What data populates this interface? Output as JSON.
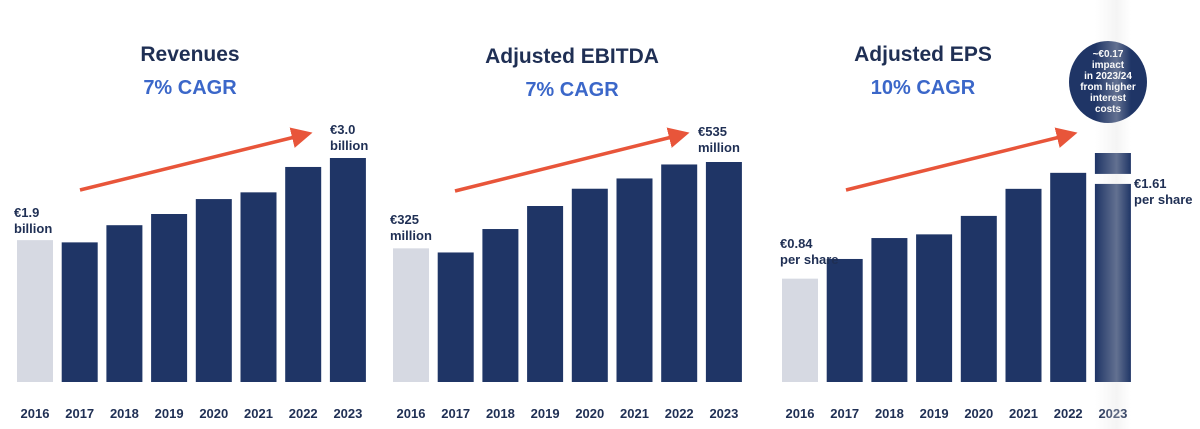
{
  "colors": {
    "bar": "#1f3566",
    "bar_base": "#d6d9e2",
    "arrow": "#e8553a",
    "title": "#1f2f54",
    "cagr": "#3b67c9"
  },
  "chart_data": [
    {
      "type": "bar",
      "title": "Revenues",
      "subtitle": "7% CAGR",
      "categories": [
        "2016",
        "2017",
        "2018",
        "2019",
        "2020",
        "2021",
        "2022",
        "2023"
      ],
      "values": [
        1.9,
        1.87,
        2.1,
        2.25,
        2.45,
        2.54,
        2.88,
        3.0
      ],
      "unit": "€ billion",
      "start_label": "€1.9\nbillion",
      "end_label": "€3.0\nbillion",
      "ylim": [
        0,
        3.0
      ],
      "grid": false,
      "legend": "none"
    },
    {
      "type": "bar",
      "title": "Adjusted EBITDA",
      "subtitle": "7% CAGR",
      "categories": [
        "2016",
        "2017",
        "2018",
        "2019",
        "2020",
        "2021",
        "2022",
        "2023"
      ],
      "values": [
        325,
        315,
        372,
        428,
        470,
        495,
        529,
        535
      ],
      "unit": "€ million",
      "start_label": "€325\nmillion",
      "end_label": "€535\nmillion",
      "ylim": [
        0,
        535
      ],
      "grid": false,
      "legend": "none"
    },
    {
      "type": "bar",
      "title": "Adjusted EPS",
      "subtitle": "10% CAGR",
      "categories": [
        "2016",
        "2017",
        "2018",
        "2019",
        "2020",
        "2021",
        "2022",
        "2023"
      ],
      "values": [
        0.84,
        1.0,
        1.17,
        1.2,
        1.35,
        1.57,
        1.7,
        1.61
      ],
      "stacked_top_2023": 0.17,
      "unit": "€ per share",
      "start_label": "€0.84\nper share",
      "end_label": "€1.61\nper share",
      "annotation": "~€0.17\nimpact\nin 2023/24\nfrom higher\ninterest\ncosts",
      "ylim": [
        0,
        1.78
      ],
      "grid": false,
      "legend": "none"
    }
  ]
}
